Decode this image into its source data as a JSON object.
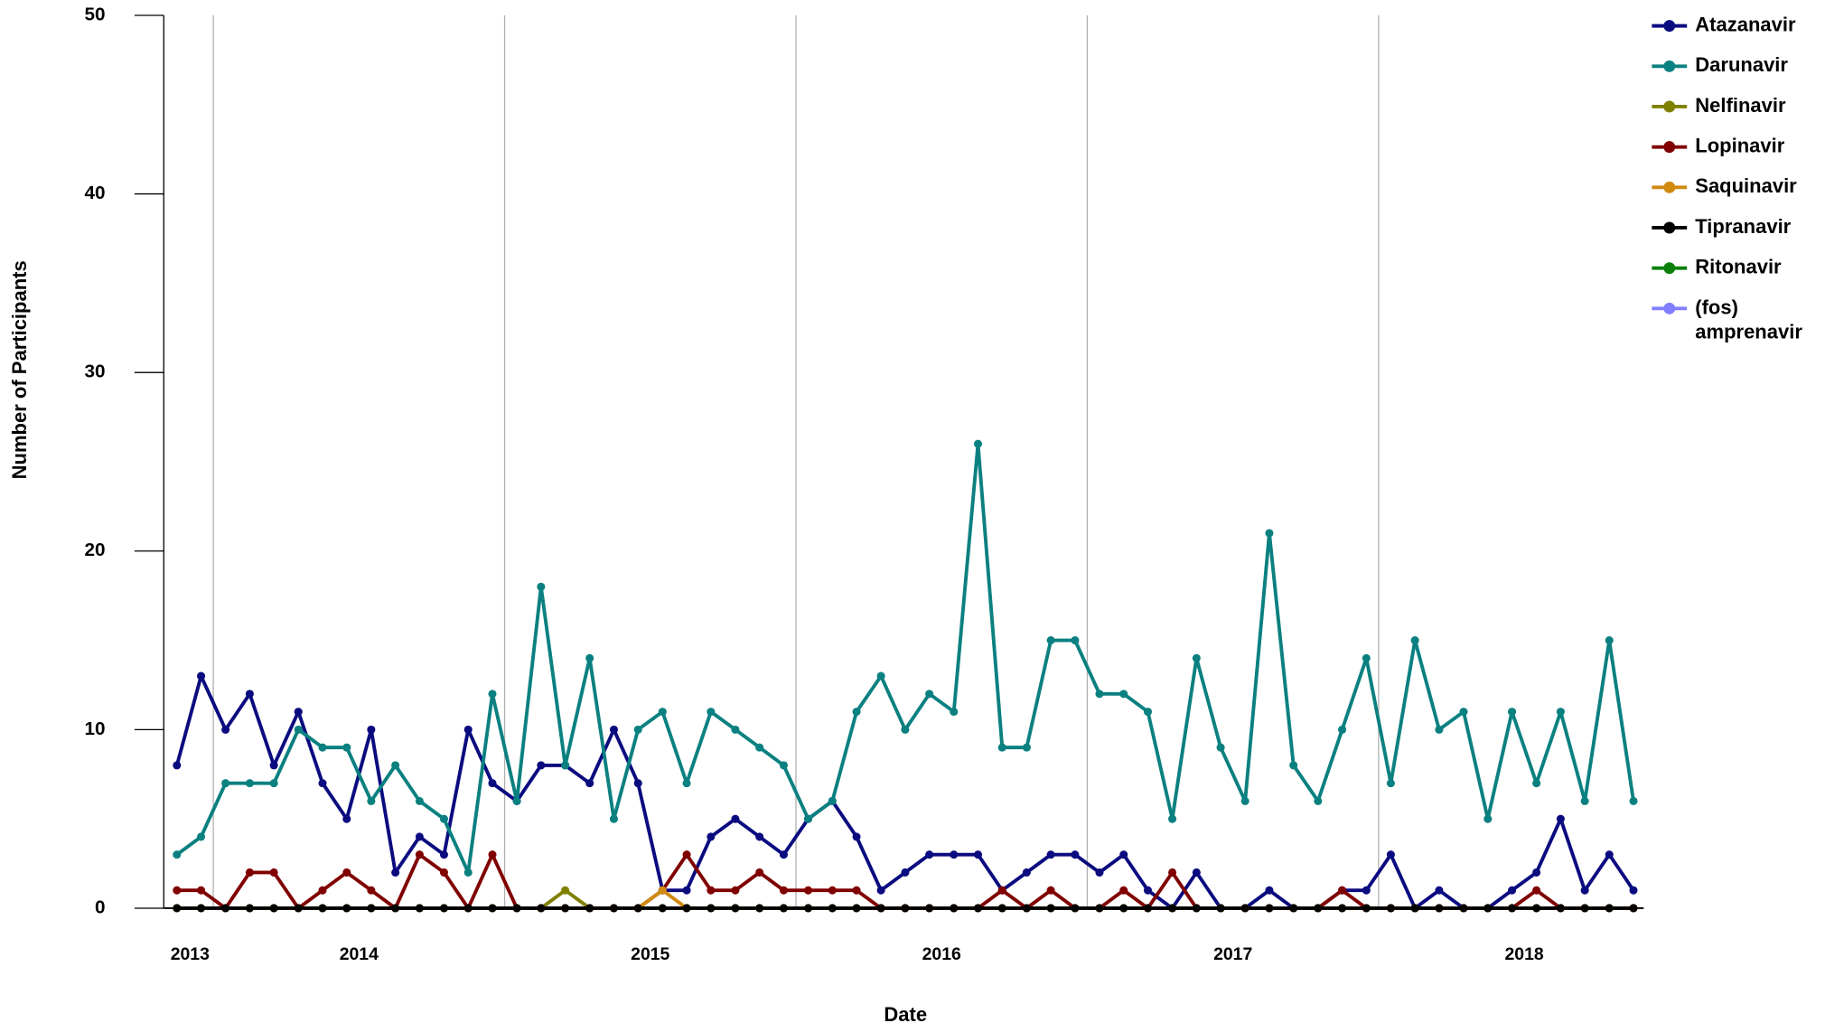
{
  "chart_data": {
    "type": "line",
    "x_label": "Date",
    "y_label": "Number of Participants",
    "x": [
      2013.875,
      2013.958,
      2014.042,
      2014.125,
      2014.208,
      2014.292,
      2014.375,
      2014.458,
      2014.542,
      2014.625,
      2014.708,
      2014.792,
      2014.875,
      2014.958,
      2015.042,
      2015.125,
      2015.208,
      2015.292,
      2015.375,
      2015.458,
      2015.542,
      2015.625,
      2015.708,
      2015.792,
      2015.875,
      2015.958,
      2016.042,
      2016.125,
      2016.208,
      2016.292,
      2016.375,
      2016.458,
      2016.542,
      2016.625,
      2016.708,
      2016.792,
      2016.875,
      2016.958,
      2017.042,
      2017.125,
      2017.208,
      2017.292,
      2017.375,
      2017.458,
      2017.542,
      2017.625,
      2017.708,
      2017.792,
      2017.875,
      2017.958,
      2018.042,
      2018.125,
      2018.208,
      2018.292,
      2018.375,
      2018.458,
      2018.542,
      2018.625,
      2018.708,
      2018.792,
      2018.875
    ],
    "series": [
      {
        "name": "Atazanavir",
        "color": "#0b0b80",
        "values": [
          8,
          13,
          10,
          12,
          8,
          11,
          7,
          5,
          10,
          2,
          4,
          3,
          10,
          7,
          6,
          8,
          8,
          7,
          10,
          7,
          1,
          1,
          4,
          5,
          4,
          3,
          5,
          6,
          4,
          1,
          2,
          3,
          3,
          3,
          1,
          2,
          3,
          3,
          2,
          3,
          1,
          0,
          2,
          0,
          0,
          1,
          0,
          0,
          1,
          1,
          3,
          0,
          1,
          0,
          0,
          1,
          2,
          5,
          1,
          3,
          1
        ]
      },
      {
        "name": "Darunavir",
        "color": "#0b8080",
        "values": [
          3,
          4,
          7,
          7,
          7,
          10,
          9,
          9,
          6,
          8,
          6,
          5,
          2,
          12,
          6,
          18,
          8,
          14,
          5,
          10,
          11,
          7,
          11,
          10,
          9,
          8,
          5,
          6,
          11,
          13,
          10,
          12,
          11,
          26,
          9,
          9,
          15,
          15,
          12,
          12,
          11,
          5,
          14,
          9,
          6,
          21,
          8,
          6,
          10,
          14,
          7,
          15,
          10,
          11,
          5,
          11,
          7,
          11,
          6,
          15,
          6
        ]
      },
      {
        "name": "Nelfinavir",
        "color": "#808000",
        "values": [
          0,
          0,
          0,
          0,
          0,
          0,
          0,
          0,
          0,
          0,
          0,
          0,
          0,
          0,
          0,
          0,
          1,
          0,
          0,
          0,
          0,
          0,
          0,
          0,
          0,
          0,
          0,
          0,
          0,
          0,
          0,
          0,
          0,
          0,
          0,
          0,
          0,
          0,
          0,
          0,
          0,
          0,
          0,
          0,
          0,
          0,
          0,
          0,
          0,
          0,
          0,
          0,
          0,
          0,
          0,
          0,
          0,
          0,
          0,
          0,
          0
        ]
      },
      {
        "name": "Lopinavir",
        "color": "#800000",
        "values": [
          1,
          1,
          0,
          2,
          2,
          0,
          1,
          2,
          1,
          0,
          3,
          2,
          0,
          3,
          0,
          0,
          0,
          0,
          0,
          0,
          1,
          3,
          1,
          1,
          2,
          1,
          1,
          1,
          1,
          0,
          0,
          0,
          0,
          0,
          1,
          0,
          1,
          0,
          0,
          1,
          0,
          2,
          0,
          0,
          0,
          0,
          0,
          0,
          1,
          0,
          0,
          0,
          0,
          0,
          0,
          0,
          1,
          0,
          0,
          0,
          0
        ]
      },
      {
        "name": "Saquinavir",
        "color": "#d08a10",
        "values": [
          0,
          0,
          0,
          0,
          0,
          0,
          0,
          0,
          0,
          0,
          0,
          0,
          0,
          0,
          0,
          0,
          0,
          0,
          0,
          0,
          1,
          0,
          0,
          0,
          0,
          0,
          0,
          0,
          0,
          0,
          0,
          0,
          0,
          0,
          0,
          0,
          0,
          0,
          0,
          0,
          0,
          0,
          0,
          0,
          0,
          0,
          0,
          0,
          0,
          0,
          0,
          0,
          0,
          0,
          0,
          0,
          0,
          0,
          0,
          0,
          0
        ]
      },
      {
        "name": "Tipranavir",
        "color": "#000000",
        "values": [
          0,
          0,
          0,
          0,
          0,
          0,
          0,
          0,
          0,
          0,
          0,
          0,
          0,
          0,
          0,
          0,
          0,
          0,
          0,
          0,
          0,
          0,
          0,
          0,
          0,
          0,
          0,
          0,
          0,
          0,
          0,
          0,
          0,
          0,
          0,
          0,
          0,
          0,
          0,
          0,
          0,
          0,
          0,
          0,
          0,
          0,
          0,
          0,
          0,
          0,
          0,
          0,
          0,
          0,
          0,
          0,
          0,
          0,
          0,
          0,
          0
        ]
      },
      {
        "name": "Ritonavir",
        "color": "#0a800a",
        "values": [
          null,
          null,
          null,
          null,
          null,
          null,
          null,
          null,
          null,
          null,
          null,
          null,
          null,
          null,
          null,
          null,
          null,
          null,
          null,
          null,
          null,
          null,
          null,
          null,
          null,
          null,
          null,
          null,
          null,
          null,
          null,
          null,
          null,
          null,
          null,
          null,
          null,
          null,
          null,
          null,
          null,
          null,
          null,
          null,
          null,
          null,
          null,
          null,
          null,
          null,
          null,
          null,
          null,
          null,
          null,
          null,
          null,
          null,
          null,
          null,
          null
        ]
      },
      {
        "name": "(fos) amprenavir",
        "color": "#8080ff",
        "values": [
          null,
          null,
          null,
          null,
          null,
          null,
          null,
          null,
          null,
          null,
          null,
          null,
          null,
          null,
          null,
          null,
          null,
          null,
          null,
          null,
          null,
          null,
          null,
          null,
          null,
          null,
          null,
          null,
          null,
          null,
          null,
          null,
          null,
          null,
          null,
          null,
          null,
          null,
          null,
          null,
          null,
          null,
          null,
          null,
          null,
          null,
          null,
          null,
          null,
          null,
          null,
          null,
          null,
          null,
          null,
          null,
          null,
          null,
          null,
          null,
          null
        ]
      }
    ],
    "xlim": [
      2013.83,
      2018.91
    ],
    "xticks": [
      {
        "value": 2013.92,
        "label": "2013"
      },
      {
        "value": 2014.5,
        "label": "2014"
      },
      {
        "value": 2015.5,
        "label": "2015"
      },
      {
        "value": 2016.5,
        "label": "2016"
      },
      {
        "value": 2017.5,
        "label": "2017"
      },
      {
        "value": 2018.5,
        "label": "2018"
      }
    ],
    "x_gridlines": [
      2014,
      2015,
      2016,
      2017,
      2018
    ],
    "ylim": [
      0,
      50
    ],
    "yticks": [
      0,
      10,
      20,
      30,
      40,
      50
    ],
    "legend": "top-right"
  }
}
